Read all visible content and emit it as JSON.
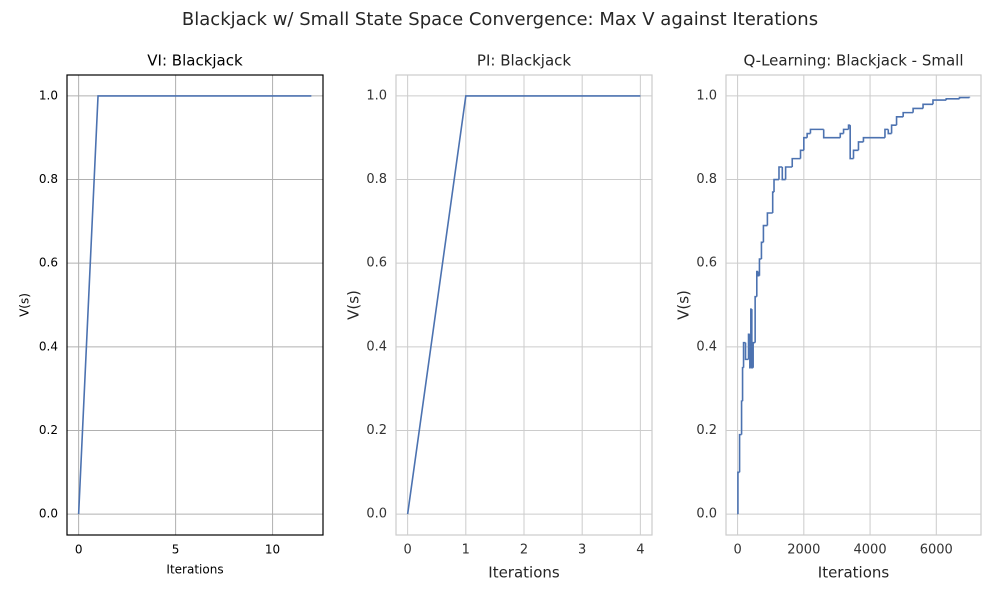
{
  "title": "Blackjack w/ Small State Space Convergence: Max V against Iterations",
  "chart_data": [
    {
      "type": "line",
      "title": "VI: Blackjack",
      "x_label": "Iterations",
      "y_label": "V(s)",
      "series": [
        {
          "color": "#4c72b0",
          "x": [
            0,
            1,
            2,
            3,
            4,
            5,
            6,
            7,
            8,
            9,
            10,
            11,
            12
          ],
          "values": [
            0,
            1,
            1,
            1,
            1,
            1,
            1,
            1,
            1,
            1,
            1,
            1,
            1
          ]
        }
      ],
      "xlim": [
        -0.6,
        12.6
      ],
      "xticks": [
        0,
        5,
        10
      ],
      "ylim": [
        -0.05,
        1.05
      ],
      "yticks": [
        {
          "value": 0,
          "label": "0.0"
        },
        0.2,
        0.4,
        0.6,
        0.8,
        {
          "value": 1,
          "label": "1.0"
        }
      ],
      "grid": true
    },
    {
      "type": "line",
      "title": "PI: Blackjack",
      "x_label": "Iterations",
      "y_label": "V(s)",
      "series": [
        {
          "color": "#4c72b0",
          "x": [
            0,
            1,
            2,
            3,
            4
          ],
          "values": [
            0,
            1,
            1,
            1,
            1
          ]
        }
      ],
      "xlim": [
        -0.2,
        4.2
      ],
      "xticks": [
        0,
        1,
        2,
        3,
        4
      ],
      "ylim": [
        -0.05,
        1.05
      ],
      "yticks": [
        {
          "value": 0,
          "label": "0.0"
        },
        0.2,
        0.4,
        0.6,
        0.8,
        {
          "value": 1,
          "label": "1.0"
        }
      ],
      "grid": true
    },
    {
      "type": "line",
      "drawstyle": "steps-post",
      "title": "Q-Learning: Blackjack - Small",
      "x_label": "Iterations",
      "y_label": "V(s)",
      "series": [
        {
          "color": "#4c72b0",
          "x": [
            0,
            10,
            60,
            120,
            150,
            180,
            240,
            330,
            370,
            400,
            430,
            470,
            530,
            580,
            620,
            660,
            720,
            780,
            900,
            1060,
            1100,
            1250,
            1350,
            1450,
            1650,
            1900,
            2000,
            2100,
            2200,
            2600,
            3100,
            3200,
            3350,
            3400,
            3500,
            3650,
            3800,
            4300,
            4450,
            4550,
            4650,
            4800,
            5000,
            5300,
            5600,
            5900,
            6300,
            6700,
            7000
          ],
          "values": [
            0,
            0.1,
            0.19,
            0.27,
            0.35,
            0.41,
            0.37,
            0.43,
            0.35,
            0.49,
            0.35,
            0.41,
            0.52,
            0.58,
            0.57,
            0.61,
            0.65,
            0.69,
            0.72,
            0.77,
            0.8,
            0.83,
            0.8,
            0.83,
            0.85,
            0.87,
            0.9,
            0.91,
            0.92,
            0.9,
            0.91,
            0.92,
            0.93,
            0.85,
            0.87,
            0.89,
            0.9,
            0.9,
            0.92,
            0.91,
            0.93,
            0.95,
            0.96,
            0.97,
            0.98,
            0.99,
            0.993,
            0.996,
            0.998
          ]
        }
      ],
      "xlim": [
        -350,
        7350
      ],
      "xticks": [
        0,
        2000,
        4000,
        6000
      ],
      "ylim": [
        -0.05,
        1.05
      ],
      "yticks": [
        {
          "value": 0,
          "label": "0.0"
        },
        0.2,
        0.4,
        0.6,
        0.8,
        {
          "value": 1,
          "label": "1.0"
        }
      ],
      "grid": true
    }
  ]
}
